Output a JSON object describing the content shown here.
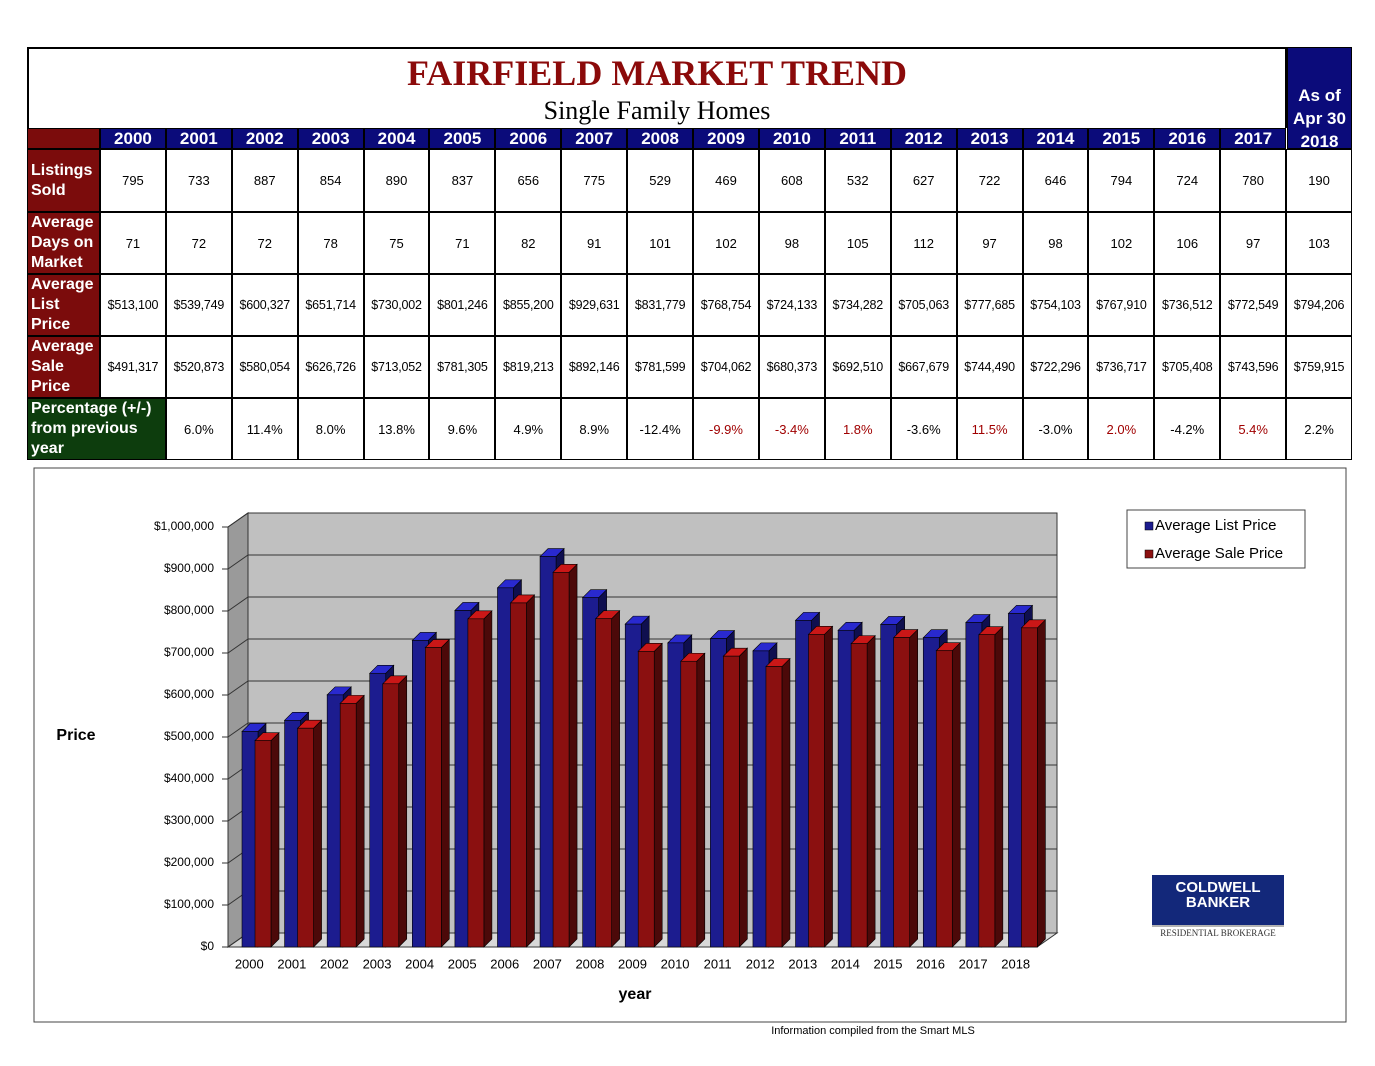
{
  "header": {
    "title": "FAIRFIELD MARKET TREND",
    "subtitle": "Single Family Homes",
    "as_of": [
      "As of",
      "Apr 30"
    ]
  },
  "table": {
    "years": [
      "2000",
      "2001",
      "2002",
      "2003",
      "2004",
      "2005",
      "2006",
      "2007",
      "2008",
      "2009",
      "2010",
      "2011",
      "2012",
      "2013",
      "2014",
      "2015",
      "2016",
      "2017",
      "2018"
    ],
    "rows": [
      {
        "label": "Listings Sold",
        "values": [
          "795",
          "733",
          "887",
          "854",
          "890",
          "837",
          "656",
          "775",
          "529",
          "469",
          "608",
          "532",
          "627",
          "722",
          "646",
          "794",
          "724",
          "780",
          "190"
        ]
      },
      {
        "label": "Average Days on Market",
        "values": [
          "71",
          "72",
          "72",
          "78",
          "75",
          "71",
          "82",
          "91",
          "101",
          "102",
          "98",
          "105",
          "112",
          "97",
          "98",
          "102",
          "106",
          "97",
          "103"
        ]
      },
      {
        "label": "Average List Price",
        "values": [
          "$513,100",
          "$539,749",
          "$600,327",
          "$651,714",
          "$730,002",
          "$801,246",
          "$855,200",
          "$929,631",
          "$831,779",
          "$768,754",
          "$724,133",
          "$734,282",
          "$705,063",
          "$777,685",
          "$754,103",
          "$767,910",
          "$736,512",
          "$772,549",
          "$794,206"
        ]
      },
      {
        "label": "Average Sale Price",
        "values": [
          "$491,317",
          "$520,873",
          "$580,054",
          "$626,726",
          "$713,052",
          "$781,305",
          "$819,213",
          "$892,146",
          "$781,599",
          "$704,062",
          "$680,373",
          "$692,510",
          "$667,679",
          "$744,490",
          "$722,296",
          "$736,717",
          "$705,408",
          "$743,596",
          "$759,915"
        ]
      },
      {
        "label": "Percentage (+/-) from previous year",
        "values": [
          "6.0%",
          "11.4%",
          "8.0%",
          "13.8%",
          "9.6%",
          "4.9%",
          "8.9%",
          "-12.4%",
          "-9.9%",
          "-3.4%",
          "1.8%",
          "-3.6%",
          "11.5%",
          "-3.0%",
          "2.0%",
          "-4.2%",
          "5.4%",
          "2.2%"
        ],
        "colors": [
          "#000000",
          "#000000",
          "#000000",
          "#000000",
          "#000000",
          "#000000",
          "#000000",
          "#000000",
          "#a00000",
          "#a00000",
          "#a00000",
          "#000000",
          "#a00000",
          "#000000",
          "#a00000",
          "#000000",
          "#a00000",
          "#000000"
        ]
      }
    ]
  },
  "chart_data": {
    "type": "bar",
    "categories": [
      "2000",
      "2001",
      "2002",
      "2003",
      "2004",
      "2005",
      "2006",
      "2007",
      "2008",
      "2009",
      "2010",
      "2011",
      "2012",
      "2013",
      "2014",
      "2015",
      "2016",
      "2017",
      "2018"
    ],
    "series": [
      {
        "name": "Average List Price",
        "color": "#1c1c8f",
        "values": [
          513100,
          539749,
          600327,
          651714,
          730002,
          801246,
          855200,
          929631,
          831779,
          768754,
          724133,
          734282,
          705063,
          777685,
          754103,
          767910,
          736512,
          772549,
          794206
        ]
      },
      {
        "name": "Average Sale Price",
        "color": "#8b1010",
        "values": [
          491317,
          520873,
          580054,
          626726,
          713052,
          781305,
          819213,
          892146,
          781599,
          704062,
          680373,
          692510,
          667679,
          744490,
          722296,
          736717,
          705408,
          743596,
          759915
        ]
      }
    ],
    "ylim": [
      0,
      1000000
    ],
    "yticks": [
      {
        "value": 0,
        "label": "$0"
      },
      {
        "value": 100000,
        "label": "$100,000"
      },
      {
        "value": 200000,
        "label": "$200,000"
      },
      {
        "value": 300000,
        "label": "$300,000"
      },
      {
        "value": 400000,
        "label": "$400,000"
      },
      {
        "value": 500000,
        "label": "$500,000"
      },
      {
        "value": 600000,
        "label": "$600,000"
      },
      {
        "value": 700000,
        "label": "$700,000"
      },
      {
        "value": 800000,
        "label": "$800,000"
      },
      {
        "value": 900000,
        "label": "$900,000"
      },
      {
        "value": 1000000,
        "label": "$1,000,000"
      }
    ],
    "ylabel": "Price",
    "xlabel": "year",
    "grid": true,
    "legend": "upper right"
  },
  "logo": {
    "line1": "COLDWELL",
    "line2": "BANKER",
    "tagline": "RESIDENTIAL BROKERAGE"
  },
  "footer": "Information compiled from the Smart MLS"
}
